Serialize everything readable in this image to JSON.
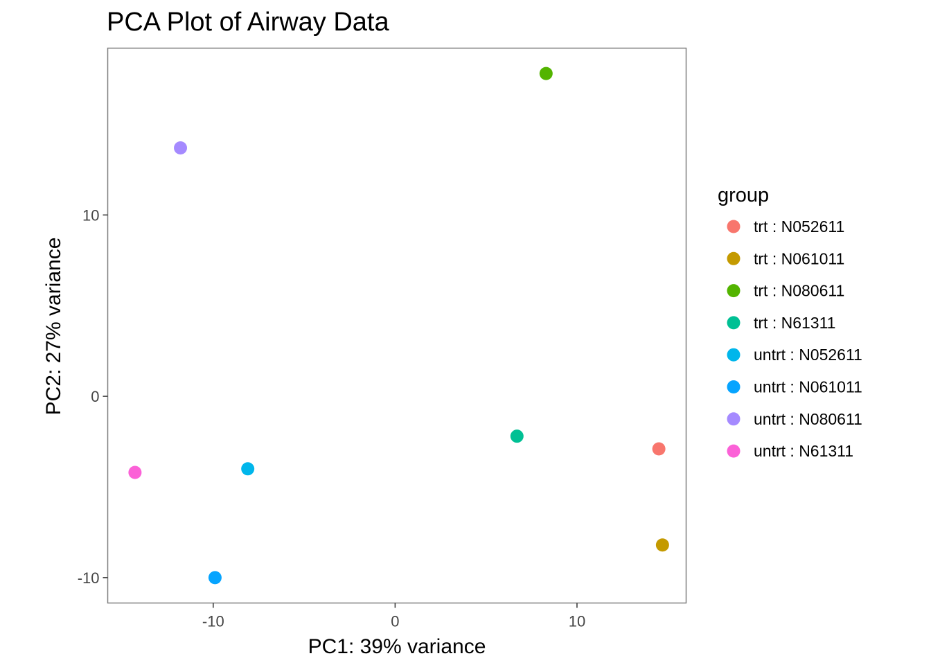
{
  "chart_data": {
    "type": "scatter",
    "title": "PCA Plot of Airway Data",
    "xlabel": "PC1: 39% variance",
    "ylabel": "PC2: 27% variance",
    "xlim": [
      -15.8,
      16.0
    ],
    "ylim": [
      -11.4,
      19.2
    ],
    "xticks": [
      -10,
      0,
      10
    ],
    "xtick_labels": [
      "-10",
      "0",
      "10"
    ],
    "yticks": [
      -10,
      0,
      10
    ],
    "ytick_labels": [
      "-10",
      "0",
      "10"
    ],
    "grid": false,
    "legend": {
      "title": "group",
      "position": "right"
    },
    "series": [
      {
        "name": "trt : N052611",
        "color": "#F8766D",
        "points": [
          [
            14.5,
            -2.9
          ]
        ]
      },
      {
        "name": "trt : N061011",
        "color": "#C49A00",
        "points": [
          [
            14.7,
            -8.2
          ]
        ]
      },
      {
        "name": "trt : N080611",
        "color": "#53B400",
        "points": [
          [
            8.3,
            17.8
          ]
        ]
      },
      {
        "name": "trt : N61311",
        "color": "#00C094",
        "points": [
          [
            6.7,
            -2.2
          ]
        ]
      },
      {
        "name": "untrt : N052611",
        "color": "#00B6EB",
        "points": [
          [
            -8.1,
            -4.0
          ]
        ]
      },
      {
        "name": "untrt : N061011",
        "color": "#06A4FF",
        "points": [
          [
            -9.9,
            -10.0
          ]
        ]
      },
      {
        "name": "untrt : N080611",
        "color": "#A58AFF",
        "points": [
          [
            -11.8,
            13.7
          ]
        ]
      },
      {
        "name": "untrt : N61311",
        "color": "#FB61D7",
        "points": [
          [
            -14.3,
            -4.2
          ]
        ]
      }
    ]
  }
}
